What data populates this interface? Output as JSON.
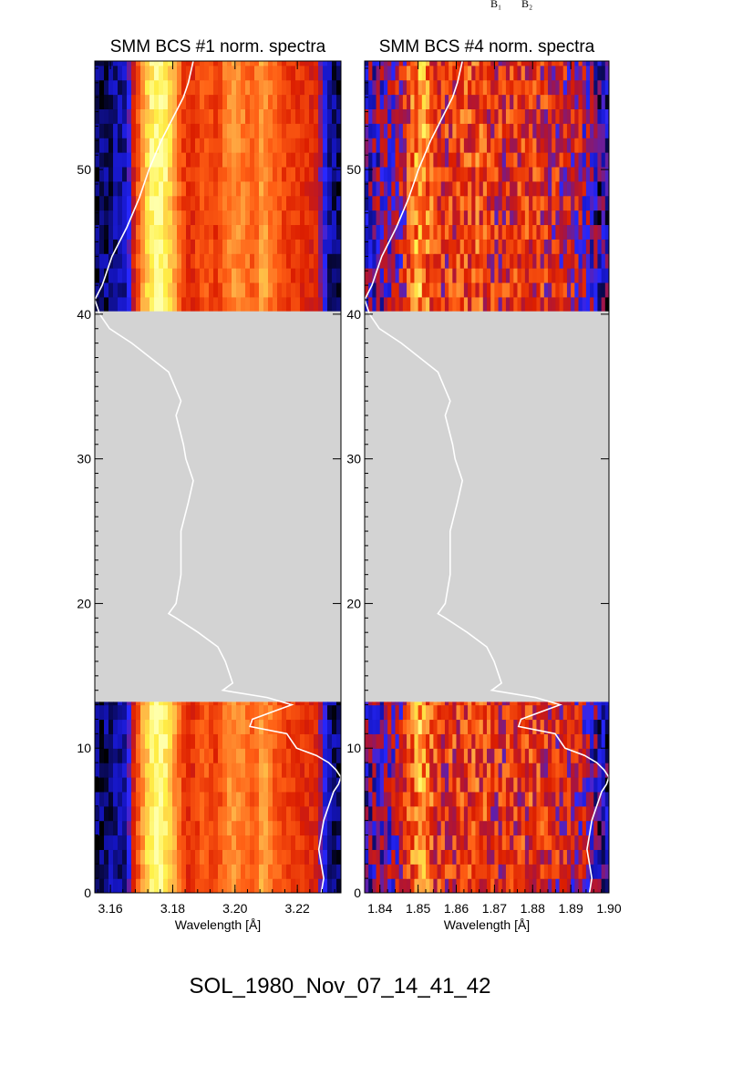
{
  "top_markers": [
    "B₁",
    "B₂"
  ],
  "footer": "SOL_1980_Nov_07_14_41_42",
  "colors": {
    "gap": "#d3d3d3",
    "curve": "#ffffff",
    "spectrum_low": "#1a1aff",
    "spectrum_mid": "#dd2200",
    "spectrum_high": "#ffff40"
  },
  "chart_data": [
    {
      "type": "heatmap",
      "title": "SMM BCS #1 norm. spectra",
      "xlabel": "Wavelength [Å]",
      "ylabel": "",
      "xlim": [
        3.155,
        3.234
      ],
      "ylim": [
        0,
        57.5
      ],
      "x_ticks": [
        "3.16",
        "3.18",
        "3.20",
        "3.22"
      ],
      "x_tick_values": [
        3.16,
        3.18,
        3.2,
        3.22
      ],
      "y_ticks": [
        "0",
        "10",
        "20",
        "30",
        "40",
        "50"
      ],
      "y_tick_values": [
        0,
        10,
        20,
        30,
        40,
        50
      ],
      "data_gap": [
        13.2,
        40.2
      ],
      "spectral_profile": {
        "x": [
          3.156,
          3.165,
          3.168,
          3.171,
          3.174,
          3.176,
          3.179,
          3.183,
          3.186,
          3.19,
          3.194,
          3.197,
          3.2,
          3.203,
          3.206,
          3.209,
          3.212,
          3.216,
          3.22,
          3.226,
          3.23,
          3.234
        ],
        "y": [
          0.05,
          0.12,
          0.55,
          0.82,
          0.97,
          1.0,
          0.88,
          0.6,
          0.52,
          0.65,
          0.55,
          0.72,
          0.74,
          0.7,
          0.62,
          0.8,
          0.66,
          0.58,
          0.55,
          0.5,
          0.1,
          0.05
        ]
      },
      "light_curve": {
        "t": [
          0,
          1,
          2,
          3,
          4,
          5,
          6,
          7,
          7.5,
          8,
          8.5,
          9,
          9.5,
          10,
          10.5,
          11,
          11.5,
          12,
          12.5,
          13,
          13.5,
          14,
          14.5,
          15,
          16,
          17,
          18,
          19,
          19.3,
          20,
          22,
          25,
          27,
          28.5,
          30,
          31,
          33,
          34,
          36,
          38,
          39,
          40,
          41,
          42,
          44,
          46,
          48,
          50,
          52,
          54,
          55,
          56,
          57.5
        ],
        "value": [
          0.92,
          0.93,
          0.92,
          0.91,
          0.92,
          0.93,
          0.95,
          0.97,
          0.99,
          1.0,
          0.98,
          0.95,
          0.9,
          0.82,
          0.8,
          0.78,
          0.63,
          0.64,
          0.72,
          0.8,
          0.7,
          0.52,
          0.56,
          0.55,
          0.53,
          0.5,
          0.42,
          0.33,
          0.3,
          0.33,
          0.35,
          0.35,
          0.38,
          0.4,
          0.37,
          0.36,
          0.33,
          0.35,
          0.3,
          0.15,
          0.06,
          0.02,
          0.0,
          0.03,
          0.07,
          0.13,
          0.18,
          0.22,
          0.27,
          0.33,
          0.36,
          0.38,
          0.4
        ]
      }
    },
    {
      "type": "heatmap",
      "title": "SMM BCS #4 norm. spectra",
      "xlabel": "Wavelength [Å]",
      "ylabel": "",
      "xlim": [
        1.836,
        1.9
      ],
      "ylim": [
        0,
        57.5
      ],
      "x_ticks": [
        "1.84",
        "1.85",
        "1.86",
        "1.87",
        "1.88",
        "1.89",
        "1.90"
      ],
      "x_tick_values": [
        1.84,
        1.85,
        1.86,
        1.87,
        1.88,
        1.89,
        1.9
      ],
      "y_ticks": [
        "0",
        "10",
        "20",
        "30",
        "40",
        "50"
      ],
      "y_tick_values": [
        0,
        10,
        20,
        30,
        40,
        50
      ],
      "data_gap": [
        13.2,
        40.2
      ],
      "spectral_profile": {
        "x": [
          1.836,
          1.842,
          1.846,
          1.849,
          1.851,
          1.853,
          1.856,
          1.86,
          1.865,
          1.87,
          1.875,
          1.88,
          1.885,
          1.89,
          1.894,
          1.897,
          1.9
        ],
        "y": [
          0.25,
          0.3,
          0.42,
          0.7,
          0.78,
          0.62,
          0.5,
          0.55,
          0.6,
          0.5,
          0.52,
          0.55,
          0.48,
          0.45,
          0.35,
          0.2,
          0.15
        ]
      },
      "light_curve": {
        "t": [
          0,
          1,
          2,
          3,
          4,
          5,
          6,
          7,
          7.5,
          8,
          8.5,
          9,
          9.5,
          10,
          10.5,
          11,
          11.5,
          12,
          12.5,
          13,
          13.5,
          14,
          14.5,
          15,
          16,
          17,
          18,
          19,
          19.3,
          20,
          22,
          25,
          27,
          28.5,
          30,
          31,
          33,
          34,
          36,
          38,
          39,
          40,
          41,
          42,
          44,
          46,
          48,
          50,
          52,
          54,
          55,
          56,
          57.5
        ],
        "value": [
          0.92,
          0.93,
          0.92,
          0.91,
          0.92,
          0.93,
          0.95,
          0.97,
          0.99,
          1.0,
          0.98,
          0.95,
          0.9,
          0.82,
          0.8,
          0.78,
          0.63,
          0.64,
          0.72,
          0.8,
          0.7,
          0.52,
          0.56,
          0.55,
          0.53,
          0.5,
          0.42,
          0.33,
          0.3,
          0.33,
          0.35,
          0.35,
          0.38,
          0.4,
          0.37,
          0.36,
          0.33,
          0.35,
          0.3,
          0.15,
          0.06,
          0.02,
          0.0,
          0.03,
          0.07,
          0.13,
          0.18,
          0.22,
          0.27,
          0.33,
          0.36,
          0.38,
          0.4
        ]
      }
    }
  ]
}
